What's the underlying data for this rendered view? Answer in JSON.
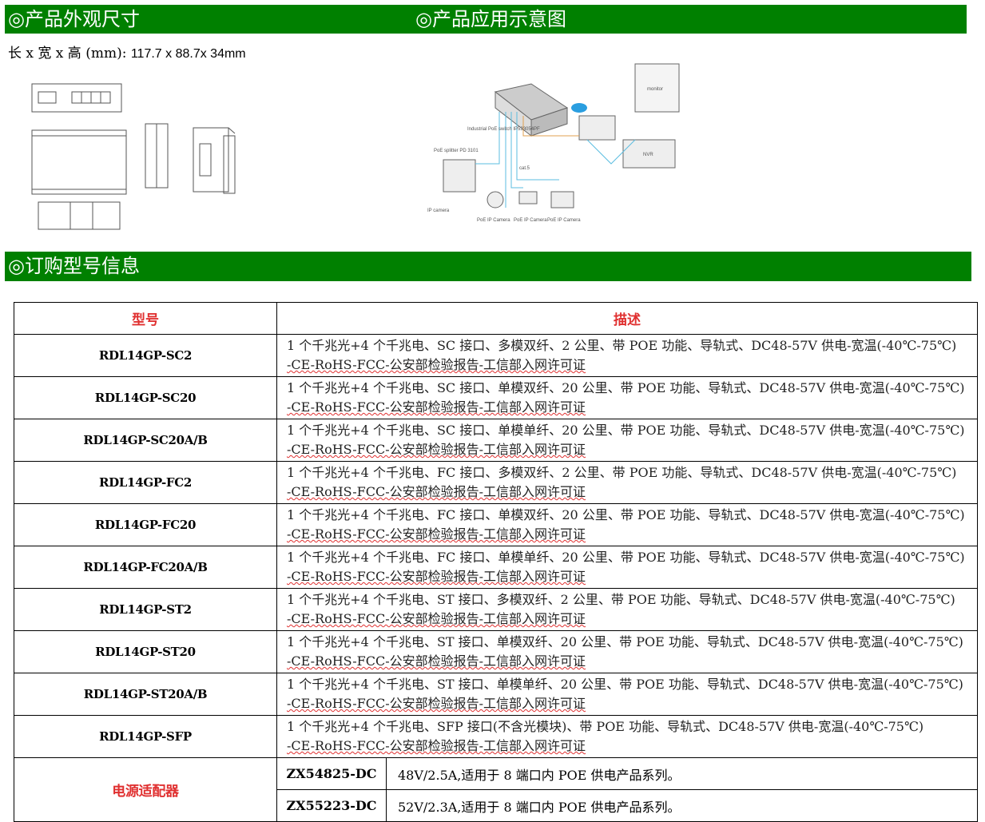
{
  "headers": {
    "dimensions": "◎产品外观尺寸",
    "application": "◎产品应用示意图",
    "ordering": "◎订购型号信息"
  },
  "dimensions": {
    "label": "长 x 宽 x 高 (mm):",
    "value": "117.7 x 88.7x 34mm"
  },
  "diagram_labels": {
    "switch": "Industrial PoE switch IP533054PF",
    "splitter": "PoE splitter PD 3101",
    "cat5": "cat.5",
    "camera": "PoE IP Camera",
    "nvr": "NVR",
    "monitor": "monitor",
    "ipcam": "IP camera"
  },
  "table": {
    "col_model": "型号",
    "col_desc": "描述",
    "rows": [
      {
        "model": "RDL14GP-SC2",
        "desc": "1 个千兆光+4 个千兆电、SC 接口、多模双纤、2 公里、带 POE 功能、导轨式、DC48-57V 供电-宽温(-40℃-75℃)",
        "desc2": "-CE-RoHS-FCC-公安部检验报告-工信部入网许可证"
      },
      {
        "model": "RDL14GP-SC20",
        "desc": "1 个千兆光+4 个千兆电、SC 接口、单模双纤、20 公里、带 POE 功能、导轨式、DC48-57V 供电-宽温(-40℃-75℃)",
        "desc2": "-CE-RoHS-FCC-公安部检验报告-工信部入网许可证"
      },
      {
        "model": "RDL14GP-SC20A/B",
        "desc": "1 个千兆光+4 个千兆电、SC 接口、单模单纤、20 公里、带 POE 功能、导轨式、DC48-57V 供电-宽温(-40℃-75℃)",
        "desc2": "-CE-RoHS-FCC-公安部检验报告-工信部入网许可证"
      },
      {
        "model": "RDL14GP-FC2",
        "desc": "1 个千兆光+4 个千兆电、FC 接口、多模双纤、2 公里、带 POE 功能、导轨式、DC48-57V 供电-宽温(-40℃-75℃)",
        "desc2": "-CE-RoHS-FCC-公安部检验报告-工信部入网许可证"
      },
      {
        "model": "RDL14GP-FC20",
        "desc": "1 个千兆光+4 个千兆电、FC 接口、单模双纤、20 公里、带 POE 功能、导轨式、DC48-57V 供电-宽温(-40℃-75℃)",
        "desc2": "-CE-RoHS-FCC-公安部检验报告-工信部入网许可证"
      },
      {
        "model": "RDL14GP-FC20A/B",
        "desc": "1 个千兆光+4 个千兆电、FC 接口、单模单纤、20 公里、带 POE 功能、导轨式、DC48-57V 供电-宽温(-40℃-75℃)",
        "desc2": "-CE-RoHS-FCC-公安部检验报告-工信部入网许可证"
      },
      {
        "model": "RDL14GP-ST2",
        "desc": "1 个千兆光+4 个千兆电、ST 接口、多模双纤、2 公里、带 POE 功能、导轨式、DC48-57V 供电-宽温(-40℃-75℃)",
        "desc2": "-CE-RoHS-FCC-公安部检验报告-工信部入网许可证"
      },
      {
        "model": "RDL14GP-ST20",
        "desc": "1 个千兆光+4 个千兆电、ST 接口、单模双纤、20 公里、带 POE 功能、导轨式、DC48-57V 供电-宽温(-40℃-75℃)",
        "desc2": "-CE-RoHS-FCC-公安部检验报告-工信部入网许可证"
      },
      {
        "model": "RDL14GP-ST20A/B",
        "desc": "1 个千兆光+4 个千兆电、ST 接口、单模单纤、20 公里、带 POE 功能、导轨式、DC48-57V 供电-宽温(-40℃-75℃)",
        "desc2": "-CE-RoHS-FCC-公安部检验报告-工信部入网许可证"
      },
      {
        "model": "RDL14GP-SFP",
        "desc": "1 个千兆光+4 个千兆电、SFP 接口(不含光模块)、带 POE 功能、导轨式、DC48-57V 供电-宽温(-40℃-75℃)",
        "desc2": "-CE-RoHS-FCC-公安部检验报告-工信部入网许可证"
      }
    ],
    "power_label": "电源适配器",
    "power": [
      {
        "model": "ZX54825-DC",
        "desc": "48V/2.5A,适用于 8 端口内 POE 供电产品系列。"
      },
      {
        "model": "ZX55223-DC",
        "desc": "52V/2.3A,适用于 8 端口内 POE 供电产品系列。"
      }
    ]
  }
}
